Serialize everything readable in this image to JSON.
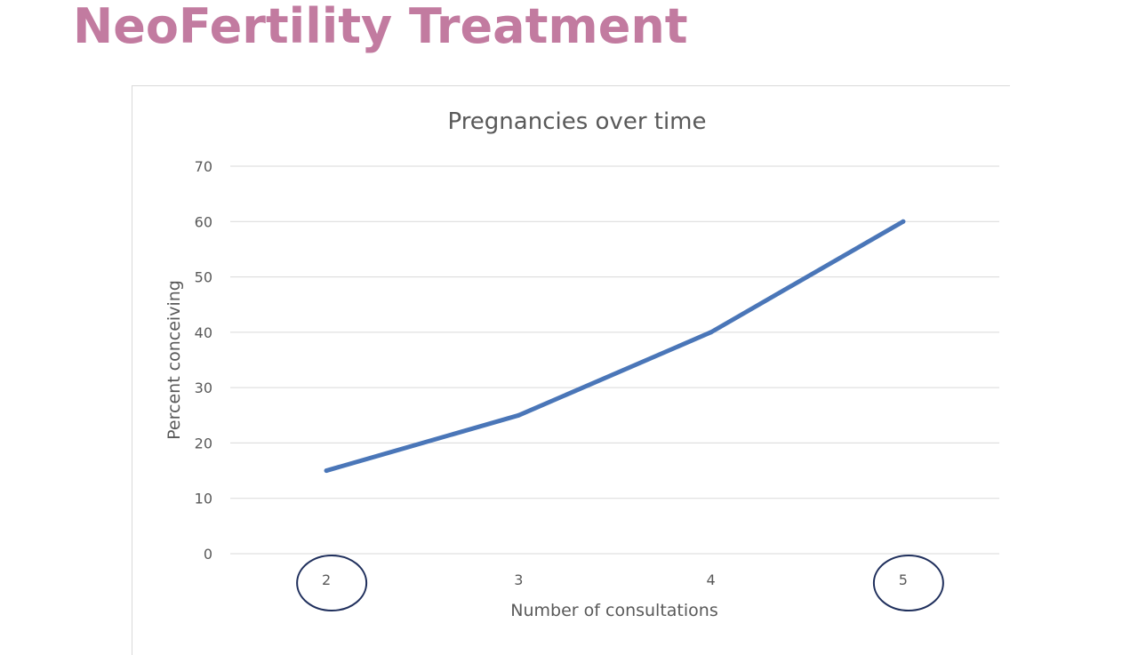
{
  "slide": {
    "title": "NeoFertility Treatment",
    "title_color": "#C27BA0"
  },
  "chart_data": {
    "type": "line",
    "title": "Pregnancies over time",
    "xlabel": "Number of consultations",
    "ylabel": "Percent conceiving",
    "categories": [
      "2",
      "3",
      "4",
      "5"
    ],
    "series": [
      {
        "values": [
          15,
          25,
          40,
          60
        ],
        "color": "#4A76B8"
      }
    ],
    "ylim": [
      0,
      70
    ],
    "yticks": [
      0,
      10,
      20,
      30,
      40,
      50,
      60,
      70
    ],
    "grid": true,
    "legend": "none",
    "circled_categories": [
      "2",
      "5"
    ],
    "circle_color": "#1F2F5C"
  }
}
